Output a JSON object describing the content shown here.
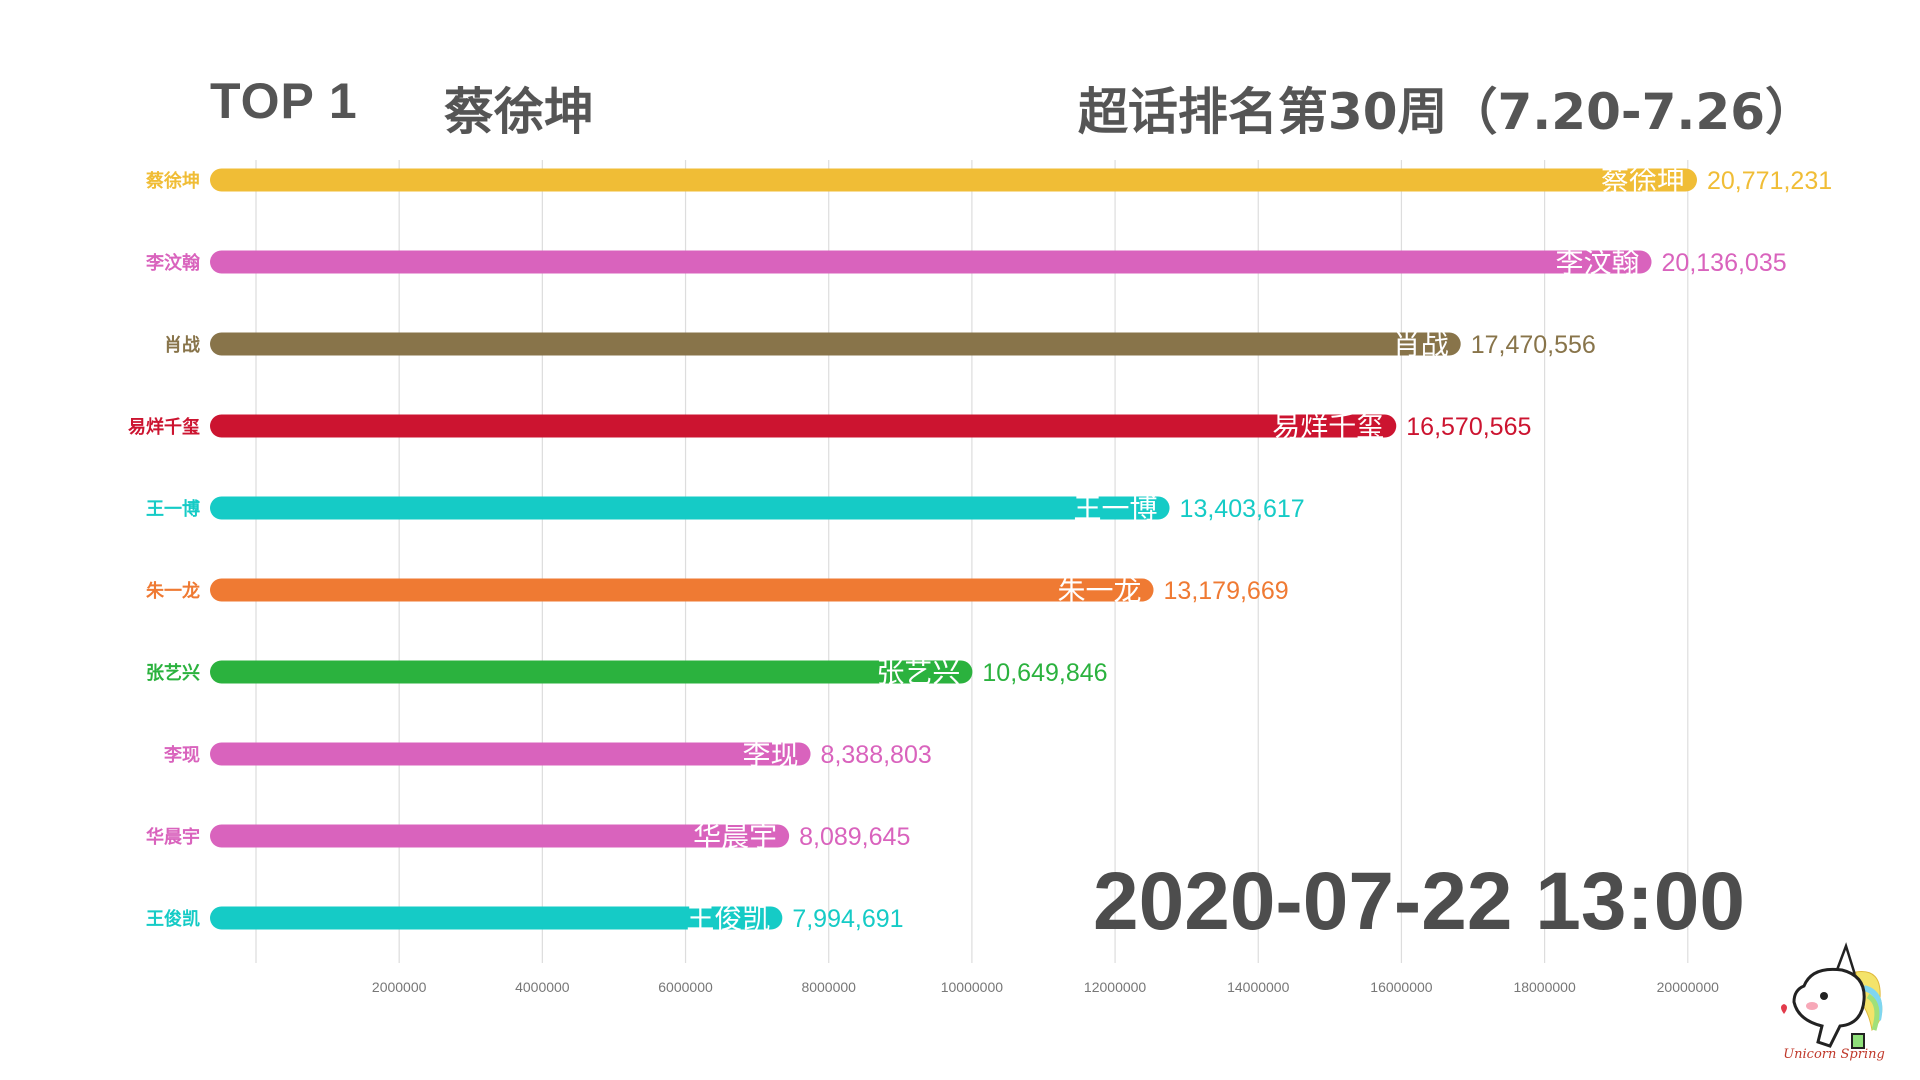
{
  "header": {
    "top_label": "TOP 1",
    "top_name": "蔡徐坤",
    "week_title": "超话排名第30周（7.20-7.26）"
  },
  "timestamp": "2020-07-22 13:00",
  "logo_text": "Unicorn Spring",
  "chart_data": {
    "type": "bar",
    "orientation": "horizontal",
    "categories": [
      "蔡徐坤",
      "李汶翰",
      "肖战",
      "易烊千玺",
      "王一博",
      "朱一龙",
      "张艺兴",
      "李现",
      "华晨宇",
      "王俊凯"
    ],
    "values": [
      20771231,
      20136035,
      17470556,
      16570565,
      13403617,
      13179669,
      10649846,
      8388803,
      8089645,
      7994691
    ],
    "value_labels": [
      "20,771,231",
      "20,136,035",
      "17,470,556",
      "16,570,565",
      "13,403,617",
      "13,179,669",
      "10,649,846",
      "8,388,803",
      "8,089,645",
      "7,994,691"
    ],
    "colors": [
      "#f0bd36",
      "#d963bd",
      "#88744a",
      "#cc1430",
      "#15cbc6",
      "#ef7a33",
      "#2bb23e",
      "#d963bd",
      "#d963bd",
      "#15cbc6"
    ],
    "xticks": [
      2000000,
      4000000,
      6000000,
      8000000,
      10000000,
      12000000,
      14000000,
      16000000,
      18000000,
      20000000
    ],
    "xtick_labels": [
      "2000000",
      "4000000",
      "6000000",
      "8000000",
      "10000000",
      "12000000",
      "14000000",
      "16000000",
      "18000000",
      "20000000"
    ],
    "xlim": [
      0,
      20771231
    ],
    "grid": true,
    "legend": false
  }
}
